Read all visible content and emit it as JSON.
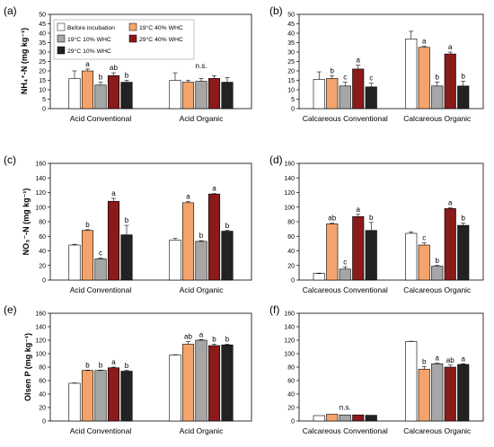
{
  "colors": {
    "Before incubation": "#ffffff",
    "19°C 40% WHC": "#f4a46a",
    "19°C 10% WHC": "#a6a6a6",
    "29°C 40% WHC": "#8b1a1a",
    "29°C 10% WHC": "#222222"
  },
  "legend": [
    "Before incubation",
    "19°C 40% WHC",
    "19°C 10% WHC",
    "29°C 40% WHC",
    "29°C 10% WHC"
  ],
  "chart_data": [
    {
      "panel_label": "(a)",
      "type": "bar",
      "ylabel": "NH₄⁺-N (mg kg⁻¹)",
      "ylim": [
        0,
        50
      ],
      "yticks": [
        0,
        5,
        10,
        15,
        20,
        25,
        30,
        35,
        40,
        45,
        50
      ],
      "categories": [
        "Acid Conventional",
        "Acid Organic"
      ],
      "series": [
        {
          "name": "Before incubation",
          "values": [
            16,
            15
          ],
          "errors": [
            4,
            4
          ],
          "labels": [
            "",
            ""
          ]
        },
        {
          "name": "19°C 40% WHC",
          "values": [
            20,
            14
          ],
          "errors": [
            1,
            1
          ],
          "labels": [
            "a",
            ""
          ]
        },
        {
          "name": "19°C 10% WHC",
          "values": [
            12.5,
            14.5
          ],
          "errors": [
            1.5,
            1.5
          ],
          "labels": [
            "b",
            ""
          ]
        },
        {
          "name": "29°C 40% WHC",
          "values": [
            17.5,
            16
          ],
          "errors": [
            1.5,
            1.5
          ],
          "labels": [
            "ab",
            ""
          ]
        },
        {
          "name": "29°C 10% WHC",
          "values": [
            14,
            14
          ],
          "errors": [
            1,
            2.5
          ],
          "labels": [
            "b",
            ""
          ]
        }
      ],
      "annotations": [
        "",
        "n.s."
      ],
      "legend_placement": "top-left"
    },
    {
      "panel_label": "(b)",
      "type": "bar",
      "ylabel": "",
      "ylim": [
        0,
        50
      ],
      "yticks": [
        0,
        5,
        10,
        15,
        20,
        25,
        30,
        35,
        40,
        45,
        50
      ],
      "categories": [
        "Calcareous Conventional",
        "Calcareous Organic"
      ],
      "series": [
        {
          "name": "Before incubation",
          "values": [
            15.5,
            37
          ],
          "errors": [
            4,
            4
          ],
          "labels": [
            "",
            ""
          ]
        },
        {
          "name": "19°C 40% WHC",
          "values": [
            16,
            32.5
          ],
          "errors": [
            1.5,
            0.5
          ],
          "labels": [
            "b",
            "a"
          ]
        },
        {
          "name": "19°C 10% WHC",
          "values": [
            12,
            12
          ],
          "errors": [
            2,
            2
          ],
          "labels": [
            "c",
            "b"
          ]
        },
        {
          "name": "29°C 40% WHC",
          "values": [
            21,
            29
          ],
          "errors": [
            2,
            1
          ],
          "labels": [
            "a",
            "a"
          ]
        },
        {
          "name": "29°C 10% WHC",
          "values": [
            11.5,
            12
          ],
          "errors": [
            2,
            2.5
          ],
          "labels": [
            "c",
            "b"
          ]
        }
      ],
      "annotations": [
        "",
        ""
      ]
    },
    {
      "panel_label": "(c)",
      "type": "bar",
      "ylabel": "NO₃⁻-N (mg kg⁻¹)",
      "ylim": [
        0,
        160
      ],
      "yticks": [
        0,
        20,
        40,
        60,
        80,
        100,
        120,
        140,
        160
      ],
      "categories": [
        "Acid Conventional",
        "Acid Organic"
      ],
      "series": [
        {
          "name": "Before incubation",
          "values": [
            48,
            55
          ],
          "errors": [
            1,
            2
          ],
          "labels": [
            "",
            ""
          ]
        },
        {
          "name": "19°C 40% WHC",
          "values": [
            68,
            106
          ],
          "errors": [
            1,
            1.5
          ],
          "labels": [
            "b",
            "a"
          ]
        },
        {
          "name": "19°C 10% WHC",
          "values": [
            29,
            53
          ],
          "errors": [
            1,
            1
          ],
          "labels": [
            "c",
            "b"
          ]
        },
        {
          "name": "29°C 40% WHC",
          "values": [
            108,
            118
          ],
          "errors": [
            4,
            0.5
          ],
          "labels": [
            "a",
            "a"
          ]
        },
        {
          "name": "29°C 10% WHC",
          "values": [
            62,
            67
          ],
          "errors": [
            13,
            1
          ],
          "labels": [
            "b",
            "b"
          ]
        }
      ],
      "annotations": [
        "",
        ""
      ]
    },
    {
      "panel_label": "(d)",
      "type": "bar",
      "ylabel": "",
      "ylim": [
        0,
        160
      ],
      "yticks": [
        0,
        20,
        40,
        60,
        80,
        100,
        120,
        140,
        160
      ],
      "categories": [
        "Calcareous Conventional",
        "Calcareous Organic"
      ],
      "series": [
        {
          "name": "Before incubation",
          "values": [
            9,
            64
          ],
          "errors": [
            0.5,
            2
          ],
          "labels": [
            "",
            ""
          ]
        },
        {
          "name": "19°C 40% WHC",
          "values": [
            77,
            48
          ],
          "errors": [
            1,
            3
          ],
          "labels": [
            "ab",
            "c"
          ]
        },
        {
          "name": "19°C 10% WHC",
          "values": [
            15,
            19
          ],
          "errors": [
            3,
            1
          ],
          "labels": [
            "c",
            "b"
          ]
        },
        {
          "name": "29°C 40% WHC",
          "values": [
            87,
            98
          ],
          "errors": [
            3,
            1
          ],
          "labels": [
            "a",
            "a"
          ]
        },
        {
          "name": "29°C 10% WHC",
          "values": [
            68,
            75
          ],
          "errors": [
            11,
            3
          ],
          "labels": [
            "b",
            "b"
          ]
        }
      ],
      "annotations": [
        "",
        ""
      ]
    },
    {
      "panel_label": "(e)",
      "type": "bar",
      "ylabel": "Olsen P (mg kg⁻¹)",
      "ylim": [
        0,
        160
      ],
      "yticks": [
        0,
        20,
        40,
        60,
        80,
        100,
        120,
        140,
        160
      ],
      "categories": [
        "Acid Conventional",
        "Acid Organic"
      ],
      "series": [
        {
          "name": "Before incubation",
          "values": [
            56,
            98
          ],
          "errors": [
            0.5,
            0.5
          ],
          "labels": [
            "",
            ""
          ]
        },
        {
          "name": "19°C 40% WHC",
          "values": [
            75,
            114
          ],
          "errors": [
            0.5,
            4
          ],
          "labels": [
            "b",
            "ab"
          ]
        },
        {
          "name": "19°C 10% WHC",
          "values": [
            75,
            120
          ],
          "errors": [
            0.5,
            1
          ],
          "labels": [
            "b",
            "a"
          ]
        },
        {
          "name": "29°C 40% WHC",
          "values": [
            79,
            112
          ],
          "errors": [
            1,
            2
          ],
          "labels": [
            "a",
            "b"
          ]
        },
        {
          "name": "29°C 10% WHC",
          "values": [
            74,
            113
          ],
          "errors": [
            1,
            1
          ],
          "labels": [
            "b",
            "b"
          ]
        }
      ],
      "annotations": [
        "",
        ""
      ]
    },
    {
      "panel_label": "(f)",
      "type": "bar",
      "ylabel": "",
      "ylim": [
        0,
        160
      ],
      "yticks": [
        0,
        20,
        40,
        60,
        80,
        100,
        120,
        140,
        160
      ],
      "categories": [
        "Calcareous Conventional",
        "Calcareous Organic"
      ],
      "series": [
        {
          "name": "Before incubation",
          "values": [
            8,
            118
          ],
          "errors": [
            0.3,
            0.5
          ],
          "labels": [
            "",
            ""
          ]
        },
        {
          "name": "19°C 40% WHC",
          "values": [
            10,
            77
          ],
          "errors": [
            0.3,
            4
          ],
          "labels": [
            "",
            "b"
          ]
        },
        {
          "name": "19°C 10% WHC",
          "values": [
            9,
            85
          ],
          "errors": [
            0.3,
            1
          ],
          "labels": [
            "",
            "a"
          ]
        },
        {
          "name": "29°C 40% WHC",
          "values": [
            9,
            80
          ],
          "errors": [
            0.3,
            3
          ],
          "labels": [
            "",
            "ab"
          ]
        },
        {
          "name": "29°C 10% WHC",
          "values": [
            8.5,
            84
          ],
          "errors": [
            0.3,
            1
          ],
          "labels": [
            "",
            "a"
          ]
        }
      ],
      "annotations": [
        "n.s.",
        ""
      ]
    }
  ]
}
